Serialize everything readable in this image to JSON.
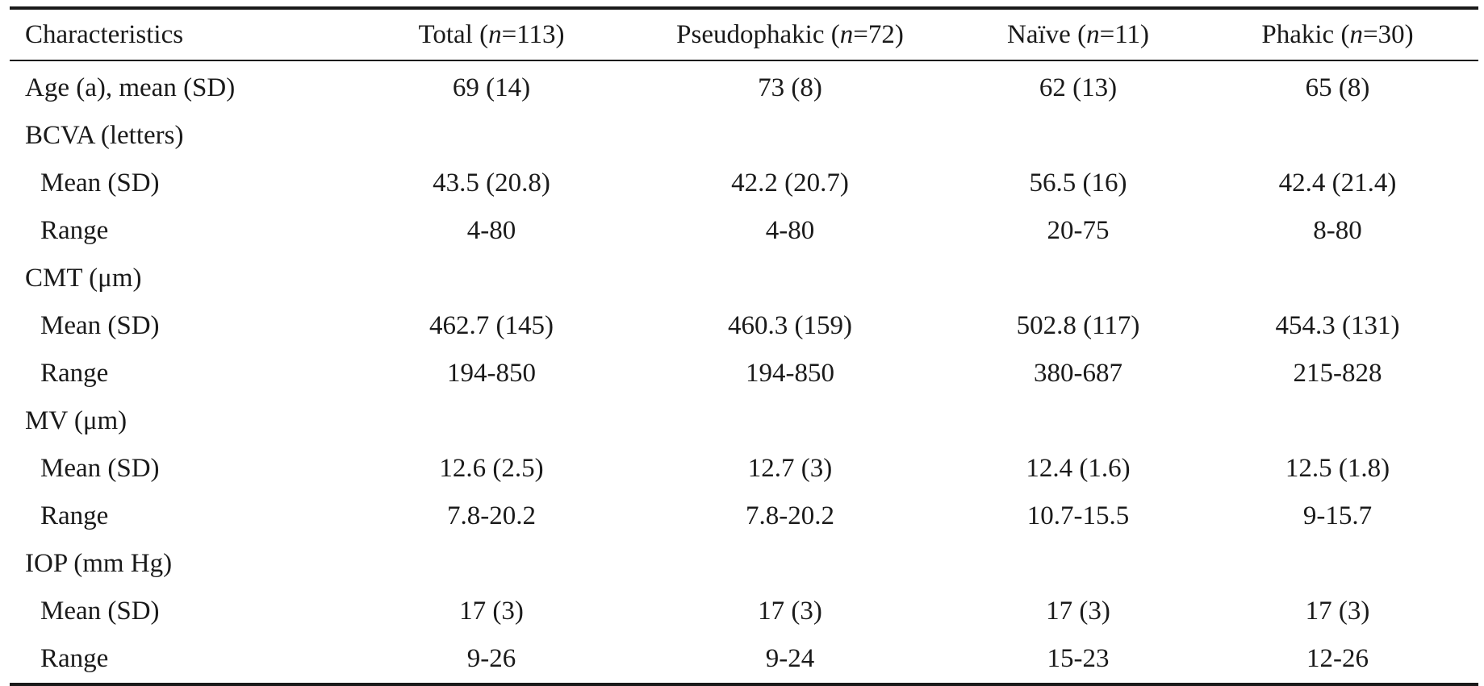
{
  "table": {
    "header": {
      "characteristics": "Characteristics",
      "columns": [
        {
          "name": "Total",
          "n": "n",
          "count": "=113"
        },
        {
          "name": "Pseudophakic",
          "n": "n",
          "count": "=72"
        },
        {
          "name": "Naïve",
          "n": "n",
          "count": "=11"
        },
        {
          "name": "Phakic",
          "n": "n",
          "count": "=30"
        }
      ]
    },
    "rows": [
      {
        "label": "Age (a), mean (SD)",
        "values": [
          "69 (14)",
          "73 (8)",
          "62 (13)",
          "65 (8)"
        ]
      },
      {
        "label": "BCVA (letters)",
        "values": [
          "",
          "",
          "",
          ""
        ]
      },
      {
        "label": "Mean (SD)",
        "values": [
          "43.5 (20.8)",
          "42.2 (20.7)",
          "56.5 (16)",
          "42.4 (21.4)"
        ]
      },
      {
        "label": "Range",
        "values": [
          "4-80",
          "4-80",
          "20-75",
          "8-80"
        ]
      },
      {
        "label": "CMT (μm)",
        "values": [
          "",
          "",
          "",
          ""
        ]
      },
      {
        "label": "Mean (SD)",
        "values": [
          "462.7 (145)",
          "460.3 (159)",
          "502.8 (117)",
          "454.3 (131)"
        ]
      },
      {
        "label": "Range",
        "values": [
          "194-850",
          "194-850",
          "380-687",
          "215-828"
        ]
      },
      {
        "label": "MV (μm)",
        "values": [
          "",
          "",
          "",
          ""
        ]
      },
      {
        "label": "Mean (SD)",
        "values": [
          "12.6 (2.5)",
          "12.7 (3)",
          "12.4 (1.6)",
          "12.5 (1.8)"
        ]
      },
      {
        "label": "Range",
        "values": [
          "7.8-20.2",
          "7.8-20.2",
          "10.7-15.5",
          "9-15.7"
        ]
      },
      {
        "label": "IOP (mm Hg)",
        "values": [
          "",
          "",
          "",
          ""
        ]
      },
      {
        "label": "Mean (SD)",
        "values": [
          "17 (3)",
          "17 (3)",
          "17 (3)",
          "17 (3)"
        ]
      },
      {
        "label": "Range",
        "values": [
          "9-26",
          "9-24",
          "15-23",
          "12-26"
        ]
      }
    ]
  }
}
